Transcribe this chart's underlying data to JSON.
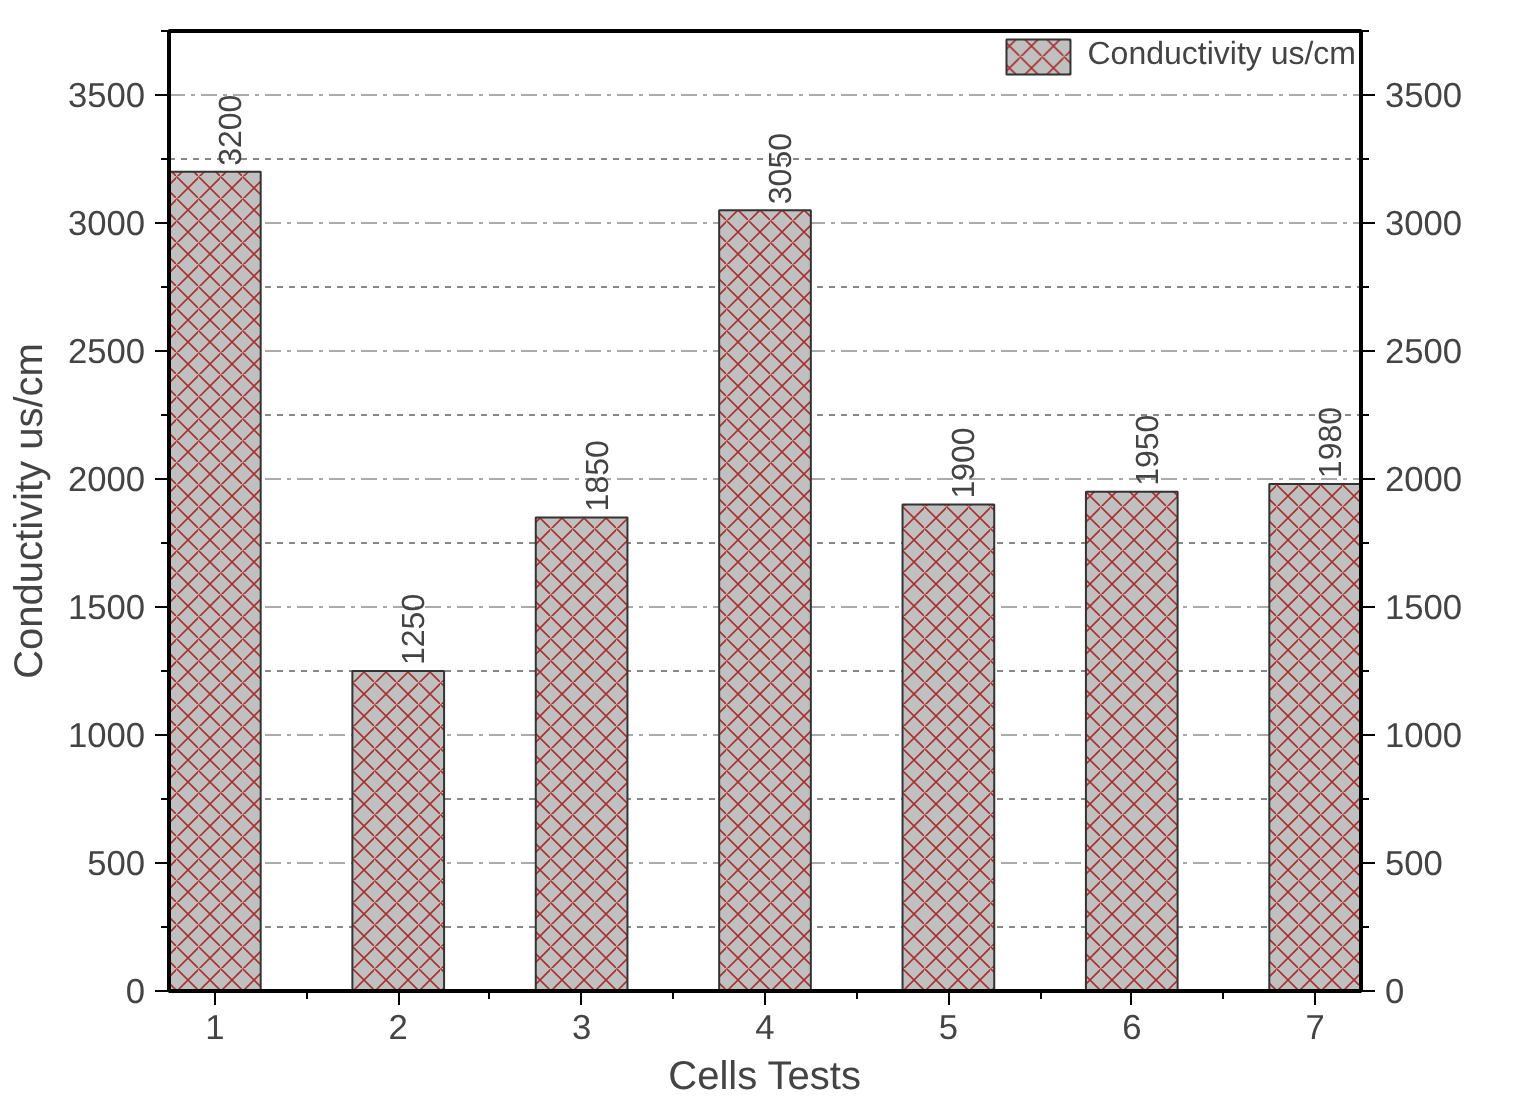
{
  "chart_data": {
    "type": "bar",
    "xlabel": "Cells Tests",
    "ylabel": "Conductivity us/cm",
    "categories": [
      "1",
      "2",
      "3",
      "4",
      "5",
      "6",
      "7"
    ],
    "series": [
      {
        "name": "Conductivity us/cm",
        "color": "#c0c0c0",
        "values": [
          3200,
          1250,
          1850,
          3050,
          1900,
          1950,
          1980
        ]
      }
    ],
    "ylim": [
      0,
      3750
    ],
    "yticks": [
      0,
      500,
      1000,
      1500,
      2000,
      2500,
      3000,
      3500
    ],
    "y2lim": [
      0,
      3750
    ],
    "y2ticks": [
      0,
      500,
      1000,
      1500,
      2000,
      2500,
      3000,
      3500
    ],
    "grid": "y",
    "legend": "top right",
    "data_labels": true
  }
}
